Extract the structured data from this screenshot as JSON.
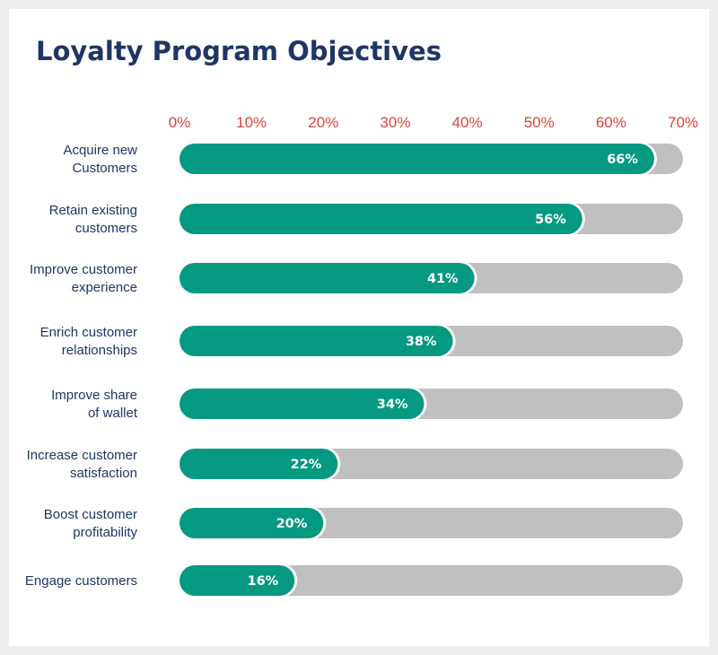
{
  "chart_data": {
    "type": "bar",
    "orientation": "horizontal",
    "title": "Loyalty Program Objectives",
    "categories": [
      [
        "Acquire new",
        "Customers"
      ],
      [
        "Retain existing",
        "customers"
      ],
      [
        "Improve customer",
        "experience"
      ],
      [
        "Enrich customer",
        "relationships"
      ],
      [
        "Improve share",
        "of wallet"
      ],
      [
        "Increase customer",
        "satisfaction"
      ],
      [
        "Boost customer",
        "profitability"
      ],
      [
        "Engage customers"
      ]
    ],
    "values": [
      66,
      56,
      41,
      38,
      34,
      22,
      20,
      16
    ],
    "data_labels": [
      "66%",
      "56%",
      "41%",
      "38%",
      "34%",
      "22%",
      "20%",
      "16%"
    ],
    "xlim": [
      0,
      70
    ],
    "x_ticks": [
      "0%",
      "10%",
      "20%",
      "30%",
      "40%",
      "50%",
      "60%",
      "70%"
    ],
    "x_axis_position": "top",
    "grid": false,
    "legend": "none",
    "colors": {
      "bar": "#069981",
      "track": "#c0c0c0",
      "title": "#1f3566",
      "category_text": "#1f3566",
      "tick_text": "#d9453a",
      "data_label_text": "#ffffff"
    }
  }
}
